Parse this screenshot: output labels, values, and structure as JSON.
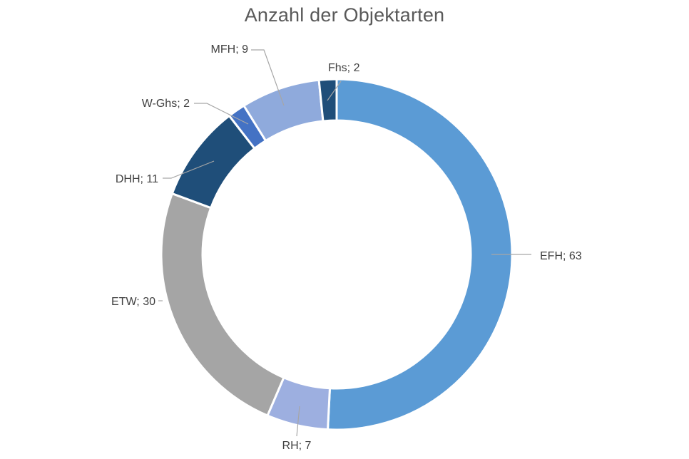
{
  "chart_data": {
    "type": "pie",
    "variant": "doughnut",
    "title": "Anzahl der Objektarten",
    "legend": "none",
    "slices": [
      {
        "label": "EFH",
        "value": 63,
        "color": "#5b9bd5"
      },
      {
        "label": "RH",
        "value": 7,
        "color": "#9dafe0"
      },
      {
        "label": "ETW",
        "value": 30,
        "color": "#a5a5a5"
      },
      {
        "label": "DHH",
        "value": 11,
        "color": "#1f4e79"
      },
      {
        "label": "W-Ghs",
        "value": 2,
        "color": "#4472c4"
      },
      {
        "label": "MFH",
        "value": 9,
        "color": "#8faadc"
      },
      {
        "label": "Fhs",
        "value": 2,
        "color": "#1f4e79"
      }
    ],
    "label_format": "{label}; {value}"
  }
}
